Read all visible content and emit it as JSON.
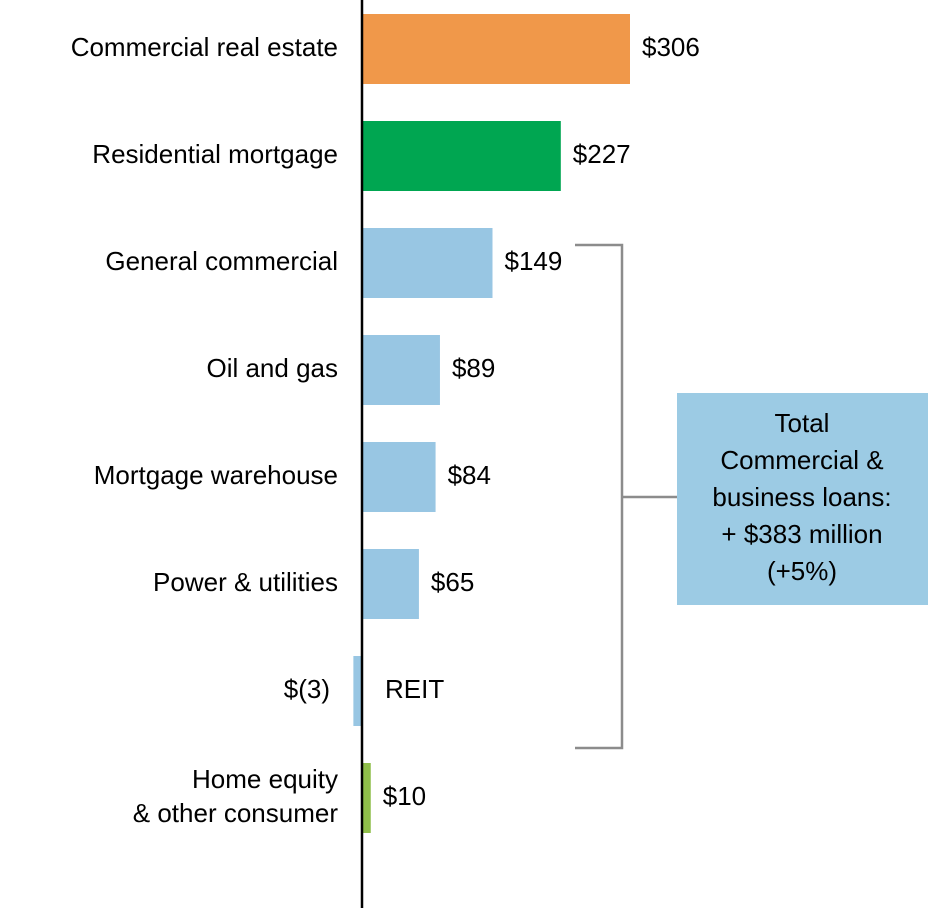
{
  "chart_data": {
    "type": "hbar",
    "categories": [
      "Commercial real estate",
      "Residential mortgage",
      "General commercial",
      "Oil and gas",
      "Mortgage warehouse",
      "Power & utilities",
      "REIT",
      "Home equity\n& other consumer"
    ],
    "values": [
      306,
      227,
      149,
      89,
      84,
      65,
      -3,
      10
    ],
    "value_labels": [
      "$306",
      "$227",
      "$149",
      "$89",
      "$84",
      "$65",
      "$(3)",
      "$10"
    ],
    "colors": [
      "#f0984a",
      "#00a651",
      "#98c6e3",
      "#98c6e3",
      "#98c6e3",
      "#98c6e3",
      "#98c6e3",
      "#8fbe4a"
    ],
    "negative_label_color": "#ff0000",
    "annotation": {
      "lines": [
        "Total",
        "Commercial &",
        "business loans:",
        "+ $383 million",
        "(+5%)"
      ],
      "color": "#9ccbe4"
    }
  }
}
